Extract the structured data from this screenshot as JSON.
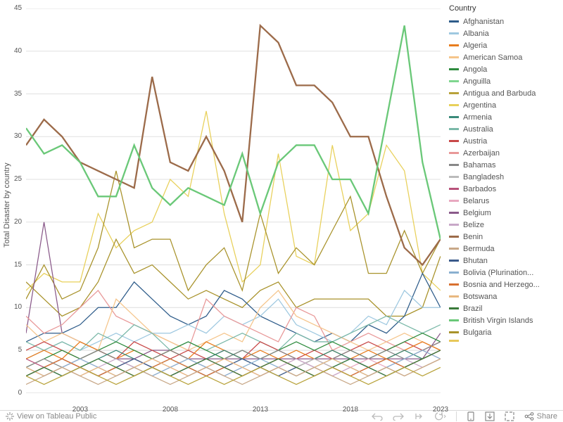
{
  "chart": {
    "type": "line",
    "y_label": "Total Disaster by country",
    "label_fontsize": 11,
    "tick_fontsize": 10,
    "background_color": "#ffffff",
    "grid_color": "#e0e0e0",
    "x": {
      "min": 2000,
      "max": 2023,
      "ticks": [
        2003,
        2008,
        2013,
        2018,
        2023
      ]
    },
    "y": {
      "min": 0,
      "max": 45,
      "ticks": [
        0,
        5,
        10,
        15,
        20,
        25,
        30,
        35,
        40,
        45
      ]
    },
    "legend_title": "Country",
    "legend": [
      {
        "label": "Afghanistan",
        "color": "#2e5c8a"
      },
      {
        "label": "Albania",
        "color": "#9ec8e0"
      },
      {
        "label": "Algeria",
        "color": "#e87d1e"
      },
      {
        "label": "American Samoa",
        "color": "#f5c58b"
      },
      {
        "label": "Angola",
        "color": "#2e8b3e"
      },
      {
        "label": "Anguilla",
        "color": "#7fd68f"
      },
      {
        "label": "Antigua and Barbuda",
        "color": "#b8a23a"
      },
      {
        "label": "Argentina",
        "color": "#e8d05a"
      },
      {
        "label": "Armenia",
        "color": "#3a8a7a"
      },
      {
        "label": "Australia",
        "color": "#7ab8a8"
      },
      {
        "label": "Austria",
        "color": "#c84848"
      },
      {
        "label": "Azerbaijan",
        "color": "#e89898"
      },
      {
        "label": "Bahamas",
        "color": "#888888"
      },
      {
        "label": "Bangladesh",
        "color": "#bbbbbb"
      },
      {
        "label": "Barbados",
        "color": "#b8527a"
      },
      {
        "label": "Belarus",
        "color": "#e8a8c0"
      },
      {
        "label": "Belgium",
        "color": "#8a5a8a"
      },
      {
        "label": "Belize",
        "color": "#c8a8c8"
      },
      {
        "label": "Benin",
        "color": "#9c6b4a"
      },
      {
        "label": "Bermuda",
        "color": "#c8a888"
      },
      {
        "label": "Bhutan",
        "color": "#3a5a8a"
      },
      {
        "label": "Bolivia (Plurination...",
        "color": "#8ab0d0"
      },
      {
        "label": "Bosnia and Herzego...",
        "color": "#d87030"
      },
      {
        "label": "Botswana",
        "color": "#e8b880"
      },
      {
        "label": "Brazil",
        "color": "#3a7a3a"
      },
      {
        "label": "British Virgin Islands",
        "color": "#6ac878"
      },
      {
        "label": "Bulgaria",
        "color": "#a8922a"
      }
    ],
    "series": [
      {
        "color": "#9c6b4a",
        "bold": true,
        "y": [
          29,
          32,
          30,
          27,
          26,
          25,
          24,
          37,
          27,
          26,
          30,
          26,
          20,
          43,
          41,
          36,
          36,
          34,
          30,
          30,
          23,
          17,
          15,
          18
        ]
      },
      {
        "color": "#6ac878",
        "bold": true,
        "y": [
          31,
          28,
          29,
          27,
          23,
          23,
          29,
          24,
          22,
          24,
          23,
          22,
          28,
          21,
          27,
          29,
          29,
          25,
          25,
          21,
          32,
          43,
          27,
          18
        ]
      },
      {
        "color": "#e8d05a",
        "bold": false,
        "y": [
          12,
          14,
          13,
          13,
          21,
          17,
          19,
          20,
          25,
          23,
          33,
          21,
          13,
          15,
          28,
          16,
          15,
          29,
          19,
          21,
          29,
          26,
          14,
          12
        ]
      },
      {
        "color": "#a8922a",
        "bold": false,
        "y": [
          11,
          15,
          11,
          12,
          17,
          26,
          17,
          18,
          18,
          12,
          15,
          17,
          12,
          21,
          14,
          17,
          15,
          19,
          23,
          14,
          14,
          19,
          14,
          18
        ]
      },
      {
        "color": "#a8922a",
        "bold": false,
        "y": [
          13,
          11,
          9,
          10,
          13,
          18,
          14,
          15,
          13,
          11,
          12,
          11,
          10,
          12,
          13,
          10,
          11,
          11,
          11,
          11,
          9,
          9,
          10,
          16
        ]
      },
      {
        "color": "#8a5a8a",
        "bold": false,
        "y": [
          7,
          20,
          7,
          6,
          5,
          4,
          4,
          5,
          5,
          4,
          4,
          4,
          4,
          4,
          4,
          4,
          4,
          4,
          4,
          4,
          4,
          4,
          4,
          7
        ]
      },
      {
        "color": "#2e5c8a",
        "bold": false,
        "y": [
          6,
          7,
          7,
          8,
          10,
          10,
          13,
          11,
          9,
          8,
          9,
          12,
          11,
          9,
          8,
          7,
          6,
          7,
          6,
          8,
          7,
          9,
          14,
          10
        ]
      },
      {
        "color": "#9ec8e0",
        "bold": false,
        "y": [
          4,
          5,
          6,
          5,
          6,
          7,
          6,
          7,
          7,
          8,
          7,
          9,
          8,
          9,
          11,
          8,
          7,
          6,
          7,
          9,
          8,
          12,
          10,
          10
        ]
      },
      {
        "color": "#e89898",
        "bold": false,
        "y": [
          9,
          7,
          8,
          10,
          12,
          9,
          8,
          7,
          6,
          5,
          11,
          9,
          8,
          7,
          6,
          10,
          9,
          5,
          6,
          7,
          6,
          5,
          6,
          5
        ]
      },
      {
        "color": "#f5c58b",
        "bold": false,
        "y": [
          8,
          6,
          7,
          6,
          5,
          11,
          9,
          7,
          6,
          5,
          6,
          7,
          6,
          10,
          12,
          9,
          8,
          7,
          6,
          5,
          6,
          7,
          6,
          5
        ]
      },
      {
        "color": "#7ab8a8",
        "bold": false,
        "y": [
          6,
          5,
          6,
          5,
          7,
          6,
          8,
          7,
          5,
          6,
          5,
          6,
          7,
          6,
          5,
          7,
          6,
          6,
          7,
          8,
          9,
          8,
          7,
          8
        ]
      },
      {
        "color": "#c84848",
        "bold": false,
        "y": [
          5,
          6,
          5,
          4,
          5,
          4,
          6,
          5,
          4,
          5,
          4,
          5,
          4,
          6,
          5,
          4,
          5,
          4,
          5,
          6,
          5,
          6,
          5,
          6
        ]
      },
      {
        "color": "#e87d1e",
        "bold": false,
        "y": [
          4,
          5,
          4,
          6,
          5,
          4,
          5,
          4,
          5,
          4,
          6,
          5,
          4,
          5,
          4,
          5,
          4,
          5,
          4,
          5,
          4,
          5,
          6,
          5
        ]
      },
      {
        "color": "#2e8b3e",
        "bold": false,
        "y": [
          3,
          4,
          5,
          4,
          5,
          6,
          5,
          4,
          5,
          6,
          5,
          4,
          5,
          4,
          5,
          6,
          5,
          6,
          5,
          4,
          5,
          6,
          7,
          6
        ]
      },
      {
        "color": "#888888",
        "bold": false,
        "y": [
          3,
          4,
          3,
          4,
          5,
          4,
          3,
          4,
          5,
          4,
          3,
          4,
          5,
          4,
          5,
          4,
          3,
          4,
          5,
          4,
          5,
          4,
          5,
          6
        ]
      },
      {
        "color": "#3a8a7a",
        "bold": false,
        "y": [
          2,
          3,
          4,
          3,
          4,
          5,
          4,
          3,
          4,
          3,
          4,
          5,
          4,
          3,
          4,
          3,
          4,
          5,
          4,
          3,
          4,
          5,
          4,
          5
        ]
      },
      {
        "color": "#b8527a",
        "bold": false,
        "y": [
          4,
          3,
          4,
          3,
          2,
          3,
          4,
          3,
          2,
          3,
          4,
          3,
          2,
          3,
          4,
          3,
          4,
          3,
          2,
          3,
          4,
          3,
          4,
          5
        ]
      },
      {
        "color": "#e8a8c0",
        "bold": false,
        "y": [
          3,
          2,
          3,
          4,
          3,
          2,
          3,
          4,
          3,
          2,
          3,
          4,
          3,
          2,
          3,
          4,
          3,
          2,
          3,
          4,
          3,
          4,
          5,
          4
        ]
      },
      {
        "color": "#bbbbbb",
        "bold": false,
        "y": [
          2,
          3,
          2,
          3,
          4,
          3,
          2,
          3,
          4,
          3,
          2,
          3,
          4,
          3,
          2,
          3,
          4,
          3,
          2,
          3,
          4,
          3,
          4,
          5
        ]
      },
      {
        "color": "#c8a8c8",
        "bold": false,
        "y": [
          3,
          2,
          3,
          2,
          3,
          4,
          3,
          2,
          3,
          4,
          3,
          2,
          3,
          2,
          3,
          4,
          3,
          2,
          3,
          2,
          3,
          4,
          3,
          4
        ]
      },
      {
        "color": "#3a5a8a",
        "bold": false,
        "y": [
          2,
          3,
          2,
          3,
          2,
          3,
          4,
          3,
          2,
          3,
          2,
          3,
          4,
          3,
          2,
          3,
          2,
          3,
          4,
          3,
          2,
          3,
          4,
          5
        ]
      },
      {
        "color": "#8ab0d0",
        "bold": false,
        "y": [
          3,
          2,
          3,
          4,
          3,
          2,
          3,
          2,
          3,
          4,
          3,
          2,
          3,
          4,
          3,
          2,
          3,
          4,
          3,
          2,
          3,
          4,
          5,
          4
        ]
      },
      {
        "color": "#d87030",
        "bold": false,
        "y": [
          2,
          3,
          4,
          3,
          2,
          3,
          2,
          3,
          4,
          3,
          2,
          3,
          2,
          3,
          4,
          3,
          2,
          3,
          2,
          3,
          4,
          3,
          4,
          5
        ]
      },
      {
        "color": "#e8b880",
        "bold": false,
        "y": [
          3,
          2,
          3,
          2,
          3,
          2,
          3,
          4,
          3,
          2,
          3,
          4,
          3,
          2,
          3,
          2,
          3,
          4,
          3,
          2,
          3,
          2,
          3,
          4
        ]
      },
      {
        "color": "#3a7a3a",
        "bold": false,
        "y": [
          2,
          3,
          2,
          3,
          4,
          3,
          2,
          3,
          2,
          3,
          4,
          3,
          2,
          3,
          4,
          3,
          2,
          3,
          4,
          3,
          2,
          3,
          4,
          5
        ]
      },
      {
        "color": "#c8a888",
        "bold": false,
        "y": [
          1,
          2,
          3,
          2,
          1,
          2,
          3,
          2,
          1,
          2,
          3,
          2,
          1,
          2,
          3,
          2,
          3,
          2,
          1,
          2,
          3,
          2,
          3,
          4
        ]
      },
      {
        "color": "#b8a23a",
        "bold": false,
        "y": [
          2,
          1,
          2,
          3,
          2,
          1,
          2,
          3,
          2,
          1,
          2,
          1,
          2,
          3,
          2,
          1,
          2,
          3,
          2,
          1,
          2,
          3,
          2,
          3
        ]
      }
    ]
  },
  "toolbar": {
    "view_label": "View on Tableau Public",
    "share_label": "Share"
  }
}
